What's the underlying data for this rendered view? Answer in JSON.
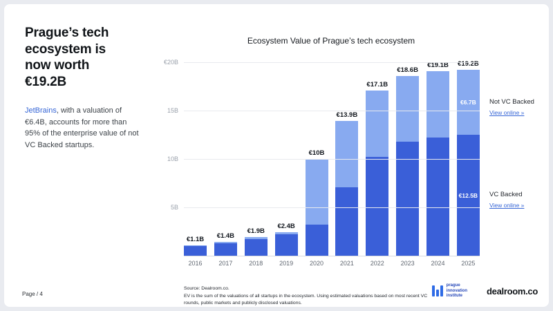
{
  "left_panel": {
    "heading": "Prague’s tech ecosystem is now worth €19.2B",
    "body_link_text": "JetBrains",
    "body_rest": ", with a valuation of €6.4B, accounts for more than 95% of the enterprise value of not VC Backed startups.",
    "page_label": "Page / 4"
  },
  "legend": {
    "not_vc_label": "Not VC Backed",
    "not_vc_link": "View online »",
    "vc_label": "VC Backed",
    "vc_link": "View online »"
  },
  "footer": {
    "source_lines": [
      "Source:  Dealroom.co.",
      "EV is the sum of the valuations of all startups in the ecosystem. Using estimated valuations based on most recent VC",
      "rounds, public markets and publicly disclosed valuations."
    ],
    "pii_logo_lines": [
      "prague",
      "innovation",
      "institute"
    ],
    "dealroom_logo": "dealroom.co"
  },
  "chart_data": {
    "type": "bar",
    "stacked": true,
    "title": "Ecosystem Value of Prague’s tech ecosystem",
    "categories": [
      "2016",
      "2017",
      "2018",
      "2019",
      "2020",
      "2021",
      "2022",
      "2023",
      "2024",
      "2025"
    ],
    "series": [
      {
        "name": "VC Backed",
        "color": "#3a5fd8",
        "values": [
          1.0,
          1.3,
          1.7,
          2.2,
          3.2,
          7.1,
          10.2,
          11.8,
          12.2,
          12.5
        ]
      },
      {
        "name": "Not VC Backed",
        "color": "#88aaf0",
        "values": [
          0.1,
          0.1,
          0.2,
          0.2,
          6.8,
          6.8,
          6.9,
          6.8,
          6.9,
          6.7
        ]
      }
    ],
    "total_labels": [
      "€1.1B",
      "€1.4B",
      "€1.9B",
      "€2.4B",
      "€10B",
      "€13.9B",
      "€17.1B",
      "€18.6B",
      "€19.1B",
      "€19.2B"
    ],
    "in_bar_labels": [
      {
        "category": "2025",
        "series": "Not VC Backed",
        "label": "€6.7B"
      },
      {
        "category": "2025",
        "series": "VC Backed",
        "label": "€12.5B"
      }
    ],
    "y_ticks": [
      {
        "label": "€20B",
        "value": 20
      },
      {
        "label": "15B",
        "value": 15
      },
      {
        "label": "10B",
        "value": 10
      },
      {
        "label": "5B",
        "value": 5
      }
    ],
    "ylim": [
      0,
      20
    ],
    "grid": true,
    "legend_position": "right"
  }
}
